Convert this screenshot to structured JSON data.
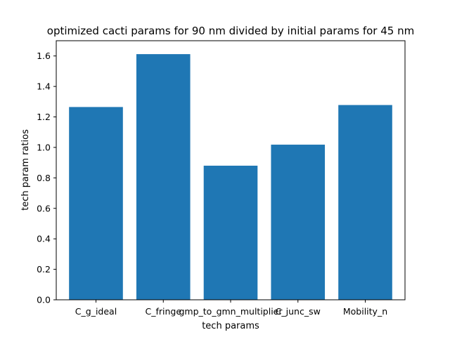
{
  "chart_data": {
    "type": "bar",
    "title": "optimized cacti params for 90 nm divided by initial params for 45 nm",
    "xlabel": "tech params",
    "ylabel": "tech param ratios",
    "categories": [
      "C_g_ideal",
      "C_fringe",
      "gmp_to_gmn_multiplier",
      "C_junc_sw",
      "Mobility_n"
    ],
    "values": [
      1.265,
      1.612,
      0.88,
      1.018,
      1.278
    ],
    "ylim": [
      0,
      1.7
    ],
    "yticks": [
      "0.0",
      "0.2",
      "0.4",
      "0.6",
      "0.8",
      "1.0",
      "1.2",
      "1.4",
      "1.6"
    ],
    "bar_color": "#1f77b4",
    "grid": false,
    "legend": "none"
  }
}
